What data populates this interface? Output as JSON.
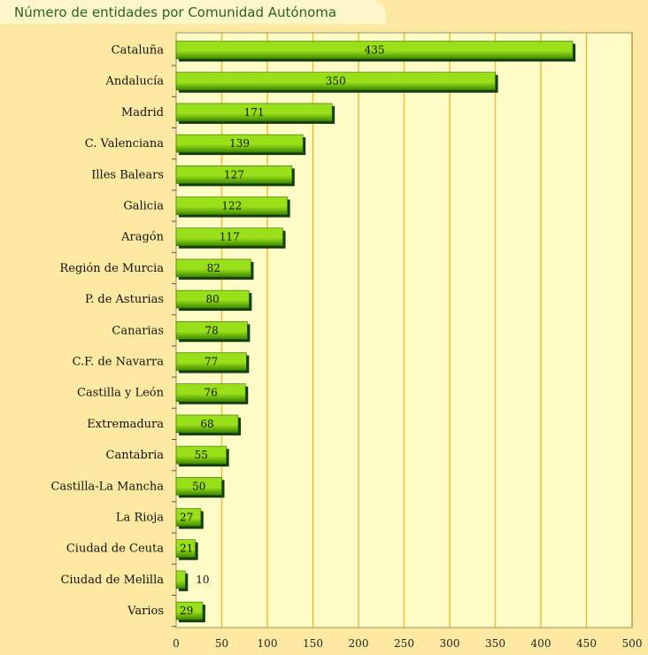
{
  "title": "Número de entidades por Comunidad Autónoma",
  "colors": {
    "page_bg": "#fde9a1",
    "plot_bg": "#fffcc8",
    "gridline": "#e8c23a",
    "bar_light": "#9ae01a",
    "bar_dark": "#3f8a00",
    "bar_shadow": "#123d08",
    "title_text": "#276326"
  },
  "chart_data": {
    "type": "bar",
    "orientation": "horizontal",
    "title": "Número de entidades por Comunidad Autónoma",
    "categories": [
      "Cataluña",
      "Andalucía",
      "Madrid",
      "C. Valenciana",
      "Illes Balears",
      "Galicia",
      "Aragón",
      "Región de Murcia",
      "P. de Asturias",
      "Canarias",
      "C.F. de Navarra",
      "Castilla y León",
      "Extremadura",
      "Cantabria",
      "Castilla-La Mancha",
      "La Rioja",
      "Ciudad de Ceuta",
      "Ciudad de Melilla",
      "Varios"
    ],
    "values": [
      435,
      350,
      171,
      139,
      127,
      122,
      117,
      82,
      80,
      78,
      77,
      76,
      68,
      55,
      50,
      27,
      21,
      10,
      29
    ],
    "xlim": [
      0,
      500
    ],
    "xticks": [
      0,
      50,
      100,
      150,
      200,
      250,
      300,
      350,
      400,
      450,
      500
    ],
    "grid": true,
    "data_labels": true
  }
}
